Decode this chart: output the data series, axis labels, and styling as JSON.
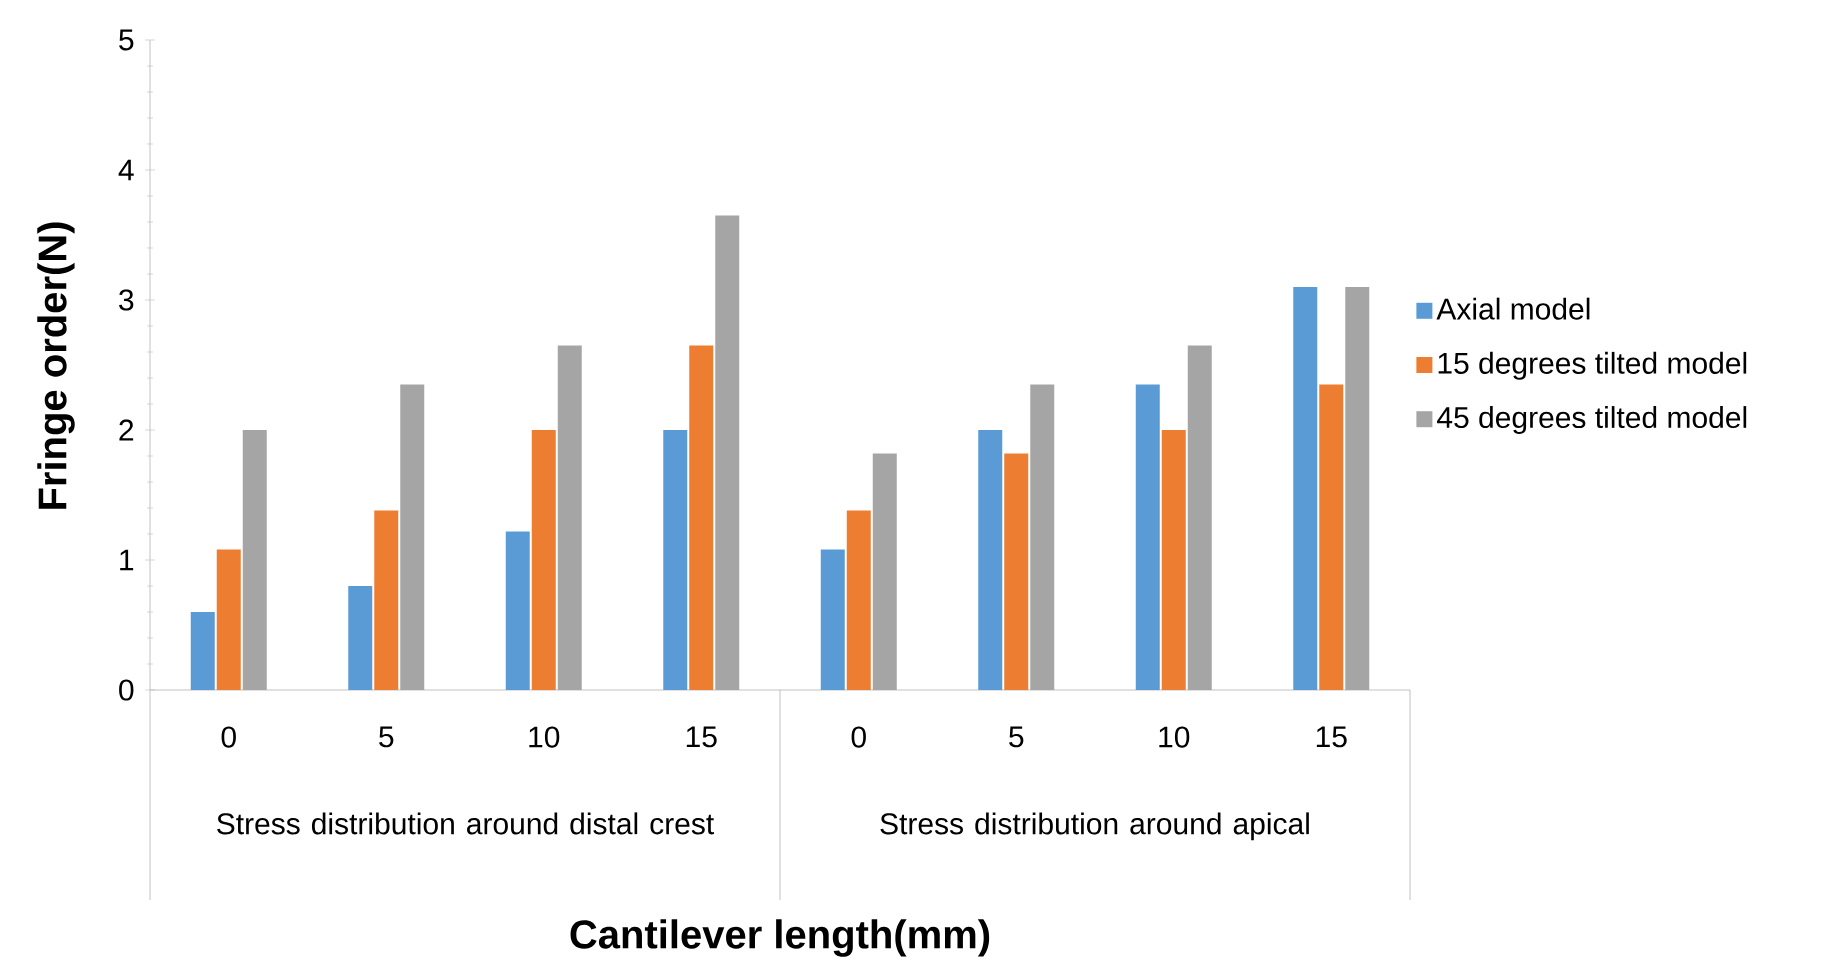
{
  "chart_data": {
    "type": "bar",
    "xlabel": "Cantilever length(mm)",
    "ylabel": "Fringe order(N)",
    "categories": [
      "0",
      "5",
      "10",
      "15",
      "0",
      "5",
      "10",
      "15"
    ],
    "annotations": [
      "Stress distribution around distal crest",
      "Stress distribution around apical"
    ],
    "series": [
      {
        "name": "Axial model",
        "color": "#5b9bd5",
        "values": [
          0.6,
          0.8,
          1.22,
          2.0,
          1.08,
          2.0,
          2.35,
          3.1
        ]
      },
      {
        "name": "15 degrees tilted model",
        "color": "#ed7d31",
        "values": [
          1.08,
          1.38,
          2.0,
          2.65,
          1.38,
          1.82,
          2.0,
          2.35
        ]
      },
      {
        "name": "45 degrees tilted model",
        "color": "#a5a5a5",
        "values": [
          2.0,
          2.35,
          2.65,
          3.65,
          1.82,
          2.35,
          2.65,
          3.1
        ]
      }
    ],
    "ylim": [
      0,
      5
    ],
    "yticks": [
      0,
      1,
      2,
      3,
      4,
      5
    ],
    "grid": false,
    "legend": "right"
  }
}
